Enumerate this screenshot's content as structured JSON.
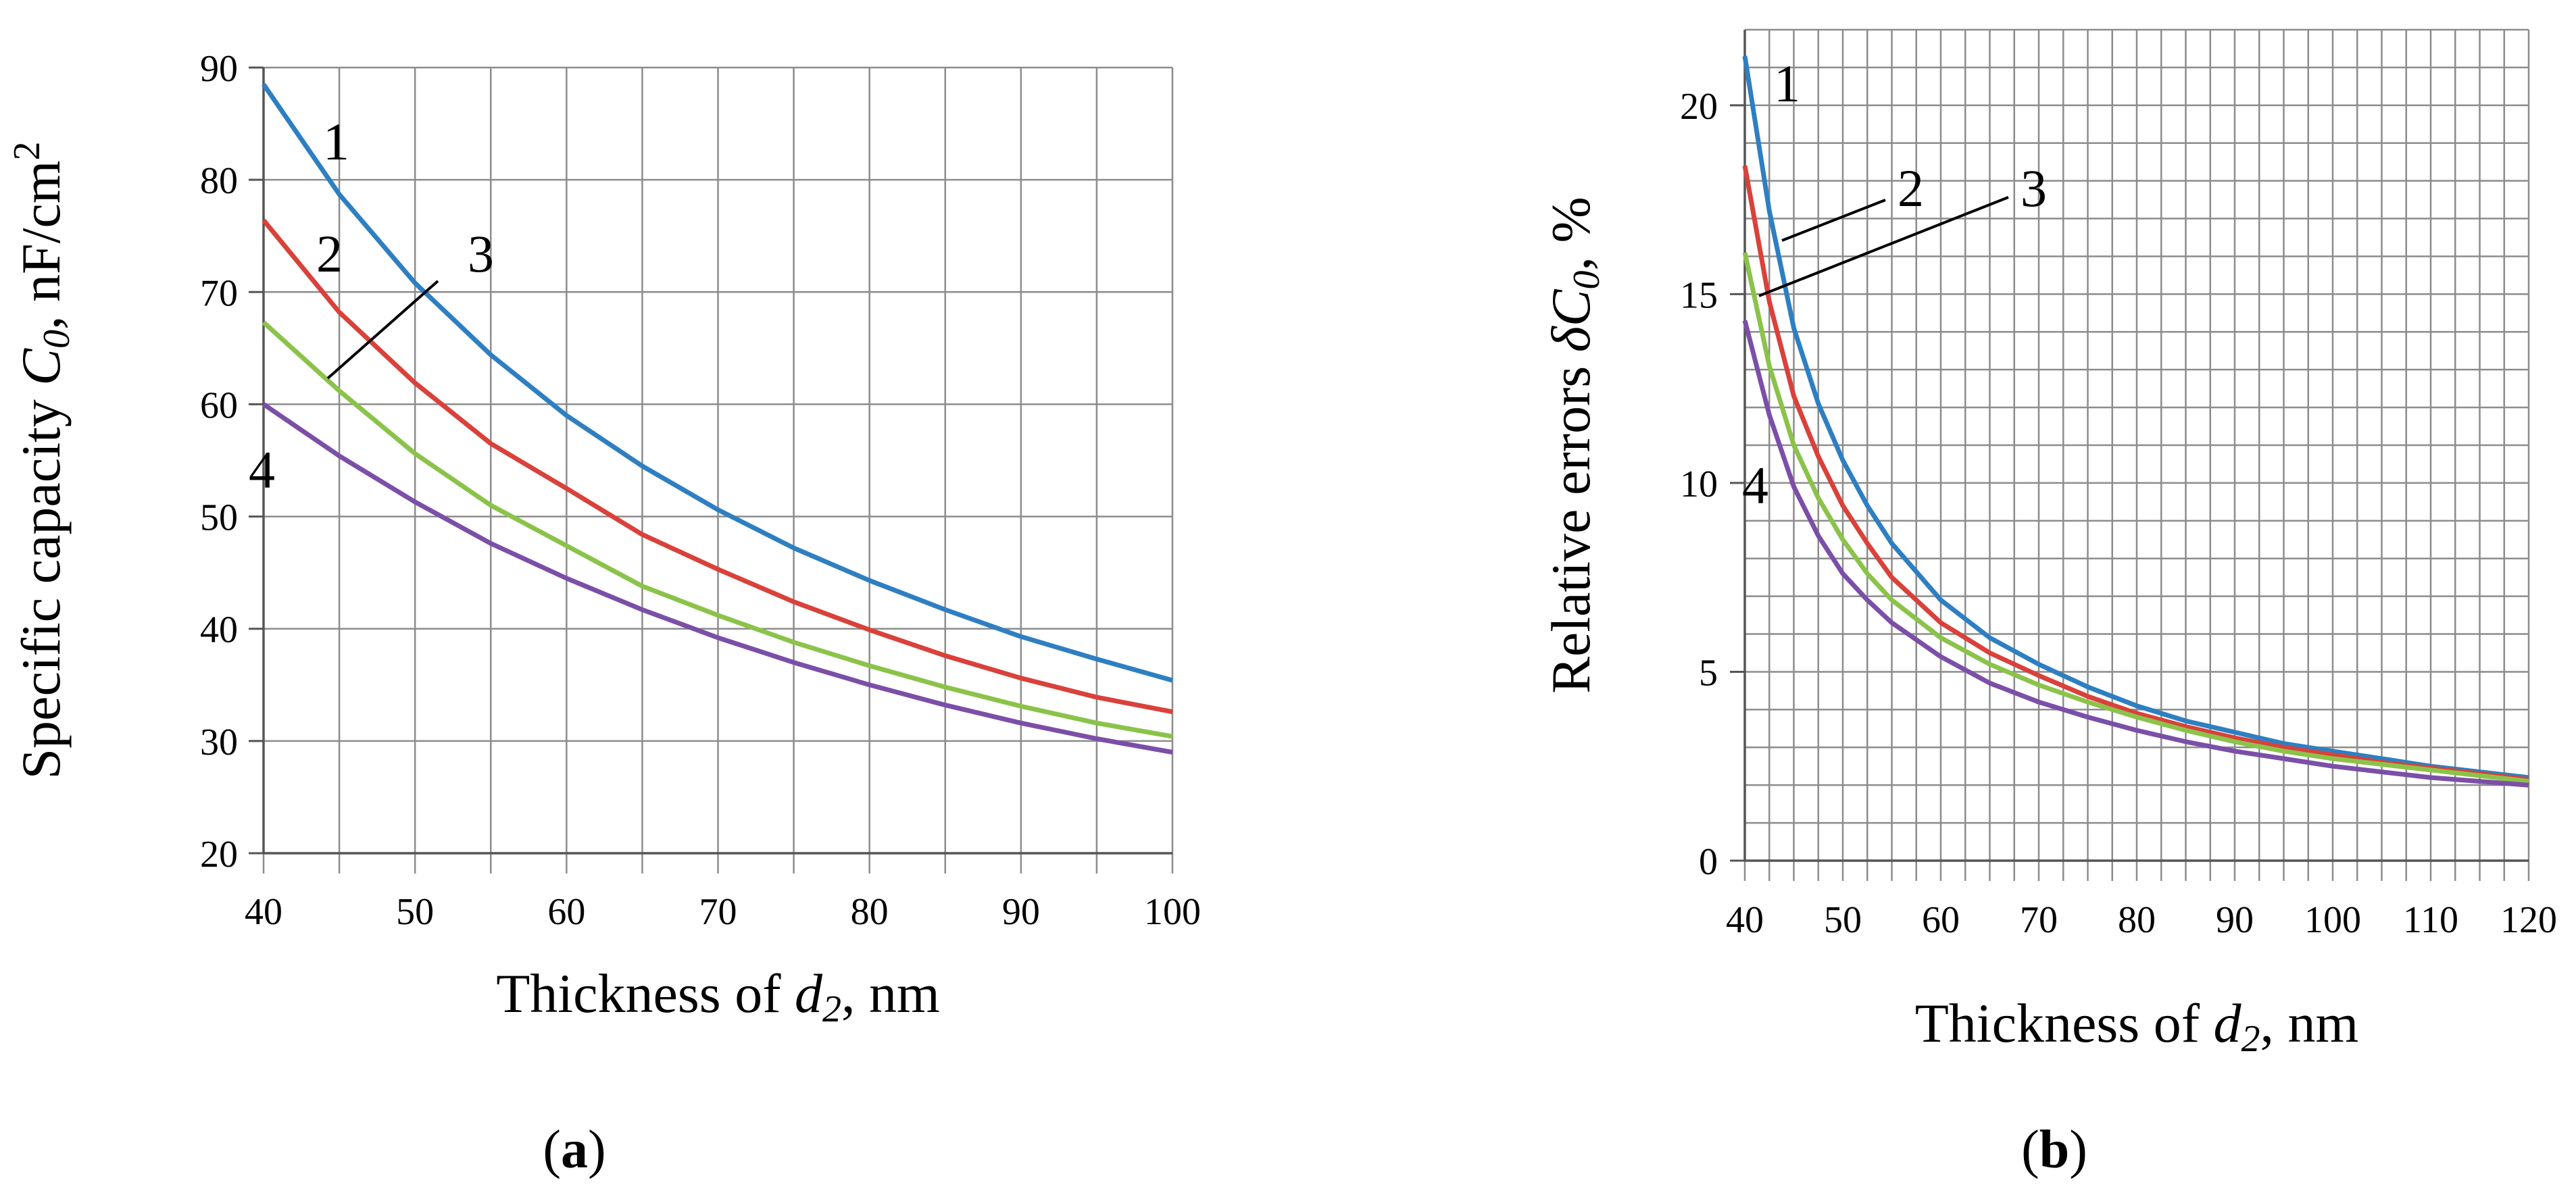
{
  "chart_data": [
    {
      "type": "line",
      "panel_label": "a",
      "title": "",
      "xlabel": "Thickness of d2, nm",
      "xlabel_parts": {
        "before": "Thickness of ",
        "var": "d",
        "sub": "2",
        "after": ", nm"
      },
      "ylabel": "Specific capacity C0, nF/cm2",
      "ylabel_parts": {
        "before": "Specific capacity ",
        "var": "C",
        "sub": "0",
        "after": ", nF/cm",
        "sup": "2"
      },
      "xlim": [
        40,
        100
      ],
      "ylim": [
        20,
        90
      ],
      "xticks": [
        40,
        50,
        60,
        70,
        80,
        90,
        100
      ],
      "yticks": [
        20,
        30,
        40,
        50,
        60,
        70,
        80,
        90
      ],
      "grid": true,
      "x": [
        40,
        45,
        50,
        55,
        60,
        65,
        70,
        75,
        80,
        85,
        90,
        95,
        100
      ],
      "series": [
        {
          "name": "1",
          "color": "#2e7fc2",
          "values": [
            88.5,
            78.7,
            70.8,
            64.4,
            59.0,
            54.5,
            50.6,
            47.2,
            44.3,
            41.7,
            39.3,
            37.3,
            35.4
          ]
        },
        {
          "name": "2",
          "color": "#d9413a",
          "values": [
            76.4,
            68.2,
            61.9,
            56.5,
            52.5,
            48.4,
            45.3,
            42.4,
            39.9,
            37.6,
            35.6,
            33.9,
            32.6
          ]
        },
        {
          "name": "3",
          "color": "#8bc34a",
          "values": [
            67.3,
            61.2,
            55.6,
            51.0,
            47.4,
            43.8,
            41.2,
            38.8,
            36.7,
            34.8,
            33.1,
            31.6,
            30.4
          ]
        },
        {
          "name": "4",
          "color": "#7b4fa8",
          "values": [
            60.0,
            55.4,
            51.3,
            47.6,
            44.5,
            41.7,
            39.2,
            37.0,
            35.0,
            33.2,
            31.6,
            30.2,
            29.0
          ]
        }
      ],
      "annotations": [
        "1",
        "2",
        "3",
        "4"
      ]
    },
    {
      "type": "line",
      "panel_label": "b",
      "title": "",
      "xlabel": "Thickness  of d2, nm",
      "xlabel_parts": {
        "before": "Thickness  of ",
        "var": "d",
        "sub": "2",
        "after": ", nm"
      },
      "ylabel": "Relative  errors δC0, %",
      "ylabel_parts": {
        "before": "Relative  errors ",
        "var": "δC",
        "sub": "0",
        "after": ", %",
        "sup": ""
      },
      "xlim": [
        40,
        120
      ],
      "ylim": [
        0,
        22
      ],
      "xticks": [
        40,
        50,
        60,
        70,
        80,
        90,
        100,
        110,
        120
      ],
      "yticks": [
        0,
        5,
        10,
        15,
        20
      ],
      "grid": true,
      "x": [
        40,
        42.5,
        45,
        47.5,
        50,
        52.5,
        55,
        60,
        65,
        70,
        75,
        80,
        85,
        90,
        95,
        100,
        105,
        110,
        115,
        120
      ],
      "series": [
        {
          "name": "1",
          "color": "#2e7fc2",
          "values": [
            21.3,
            17.2,
            14.1,
            12.1,
            10.6,
            9.4,
            8.4,
            6.9,
            5.9,
            5.2,
            4.6,
            4.1,
            3.7,
            3.4,
            3.1,
            2.9,
            2.7,
            2.5,
            2.35,
            2.2
          ]
        },
        {
          "name": "2",
          "color": "#d9413a",
          "values": [
            18.4,
            14.8,
            12.3,
            10.7,
            9.4,
            8.4,
            7.5,
            6.3,
            5.5,
            4.9,
            4.35,
            3.9,
            3.55,
            3.25,
            3.0,
            2.8,
            2.6,
            2.45,
            2.3,
            2.15
          ]
        },
        {
          "name": "3",
          "color": "#8bc34a",
          "values": [
            16.1,
            13.1,
            11.0,
            9.6,
            8.5,
            7.6,
            6.9,
            5.9,
            5.2,
            4.65,
            4.2,
            3.8,
            3.45,
            3.15,
            2.9,
            2.7,
            2.55,
            2.4,
            2.25,
            2.1
          ]
        },
        {
          "name": "4",
          "color": "#7b4fa8",
          "values": [
            14.3,
            11.8,
            9.9,
            8.6,
            7.6,
            6.9,
            6.3,
            5.4,
            4.7,
            4.2,
            3.8,
            3.45,
            3.15,
            2.9,
            2.7,
            2.5,
            2.35,
            2.2,
            2.1,
            2.0
          ]
        }
      ],
      "annotations": [
        "1",
        "2",
        "3",
        "4"
      ]
    }
  ]
}
